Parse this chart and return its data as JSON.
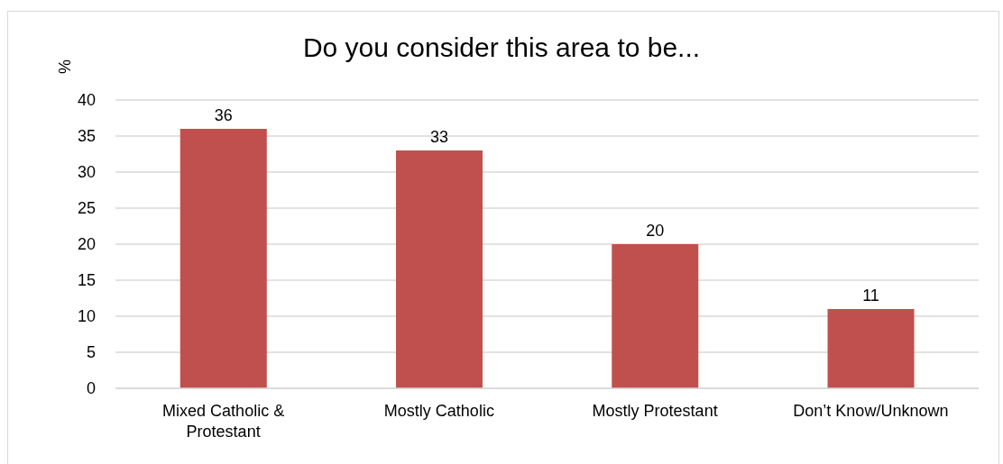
{
  "chart_data": {
    "type": "bar",
    "title": "Do you consider this area to be...",
    "ylabel": "%",
    "categories": [
      "Mixed Catholic & Protestant",
      "Mostly Catholic",
      "Mostly Protestant",
      "Don’t Know/Unknown"
    ],
    "values": [
      36,
      33,
      20,
      11
    ],
    "color": "#c0504d",
    "ylim": [
      0,
      40
    ],
    "yticks": [
      0,
      5,
      10,
      15,
      20,
      25,
      30,
      35,
      40
    ],
    "grid": "y",
    "data_labels": true
  }
}
